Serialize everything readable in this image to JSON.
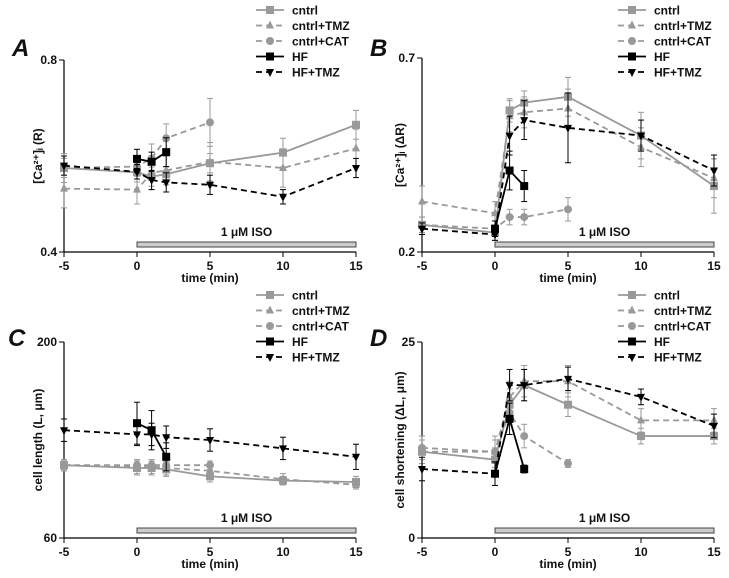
{
  "figure": {
    "iso_label": "1 μM ISO",
    "panels": [
      "A",
      "B",
      "C",
      "D"
    ]
  },
  "chart_data": [
    {
      "panel": "A",
      "type": "line",
      "xlabel": "time (min)",
      "ylabel": "[Ca²⁺]ᵢ (R)",
      "xlim": [
        -5,
        15
      ],
      "ylim": [
        0.4,
        0.8
      ],
      "xticks": [
        -5,
        0,
        5,
        10,
        15
      ],
      "yticks": [
        0.4,
        0.8
      ],
      "iso_label": "1 μM ISO",
      "legend": [
        "cntrl",
        "cntrl+TMZ",
        "cntrl+CAT",
        "HF",
        "HF+TMZ"
      ],
      "series": [
        {
          "name": "cntrl",
          "x": [
            -5,
            0,
            1,
            2,
            5,
            10,
            15
          ],
          "y": [
            0.575,
            0.566,
            0.557,
            0.562,
            0.585,
            0.607,
            0.665
          ],
          "err": [
            0.02,
            0.02,
            0.02,
            0.015,
            0.02,
            0.03,
            0.03
          ]
        },
        {
          "name": "cntrl+TMZ",
          "x": [
            -5,
            0,
            1,
            2,
            5,
            10,
            15
          ],
          "y": [
            0.532,
            0.53,
            0.565,
            0.57,
            0.588,
            0.575,
            0.616
          ],
          "err": [
            0.04,
            0.03,
            0.035,
            0.03,
            0.04,
            0.04,
            0.04
          ]
        },
        {
          "name": "cntrl+CAT",
          "x": [
            -5,
            0,
            1,
            2,
            5
          ],
          "y": [
            0.575,
            0.578,
            0.595,
            0.637,
            0.67
          ],
          "err": [
            0.03,
            0.02,
            0.03,
            0.03,
            0.05
          ]
        },
        {
          "name": "HF",
          "x": [
            0,
            1,
            2
          ],
          "y": [
            0.594,
            0.588,
            0.608
          ],
          "err": [
            0.02,
            0.02,
            0.03
          ]
        },
        {
          "name": "HF+TMZ",
          "x": [
            -5,
            0,
            1,
            2,
            5,
            10,
            15
          ],
          "y": [
            0.58,
            0.567,
            0.55,
            0.545,
            0.54,
            0.515,
            0.575
          ],
          "err": [
            0.02,
            0.015,
            0.02,
            0.02,
            0.02,
            0.015,
            0.02
          ]
        }
      ]
    },
    {
      "panel": "B",
      "type": "line",
      "xlabel": "time (min)",
      "ylabel": "[Ca²⁺]ᵢ (ΔR)",
      "xlim": [
        -5,
        15
      ],
      "ylim": [
        0.2,
        0.7
      ],
      "xticks": [
        -5,
        0,
        5,
        10,
        15
      ],
      "yticks": [
        0.2,
        0.7
      ],
      "iso_label": "1 μM ISO",
      "legend": [
        "cntrl",
        "cntrl+TMZ",
        "cntrl+CAT",
        "HF",
        "HF+TMZ"
      ],
      "series": [
        {
          "name": "cntrl",
          "x": [
            -5,
            0,
            1,
            2,
            5,
            10,
            15
          ],
          "y": [
            0.27,
            0.25,
            0.565,
            0.585,
            0.6,
            0.5,
            0.37
          ],
          "err": [
            0.02,
            0.02,
            0.03,
            0.03,
            0.05,
            0.06,
            0.07
          ]
        },
        {
          "name": "cntrl+TMZ",
          "x": [
            -5,
            0,
            1,
            2,
            5,
            10,
            15
          ],
          "y": [
            0.33,
            0.3,
            0.55,
            0.56,
            0.57,
            0.47,
            0.39
          ],
          "err": [
            0.04,
            0.03,
            0.04,
            0.04,
            0.05,
            0.05,
            0.05
          ]
        },
        {
          "name": "cntrl+CAT",
          "x": [
            -5,
            0,
            1,
            2,
            5
          ],
          "y": [
            0.27,
            0.26,
            0.29,
            0.29,
            0.31
          ],
          "err": [
            0.02,
            0.02,
            0.02,
            0.02,
            0.03
          ]
        },
        {
          "name": "HF",
          "x": [
            0,
            1,
            2
          ],
          "y": [
            0.26,
            0.41,
            0.37
          ],
          "err": [
            0.02,
            0.05,
            0.04
          ]
        },
        {
          "name": "HF+TMZ",
          "x": [
            -5,
            0,
            1,
            2,
            5,
            10,
            15
          ],
          "y": [
            0.26,
            0.245,
            0.5,
            0.54,
            0.52,
            0.5,
            0.41
          ],
          "err": [
            0.015,
            0.015,
            0.05,
            0.05,
            0.09,
            0.04,
            0.04
          ]
        }
      ]
    },
    {
      "panel": "C",
      "type": "line",
      "xlabel": "time (min)",
      "ylabel": "cell length (L, μm)",
      "xlim": [
        -5,
        15
      ],
      "ylim": [
        60,
        200
      ],
      "xticks": [
        -5,
        0,
        5,
        10,
        15
      ],
      "yticks": [
        60,
        200
      ],
      "iso_label": "1 μM ISO",
      "legend": [
        "cntrl",
        "cntrl+TMZ",
        "cntrl+CAT",
        "HF",
        "HF+TMZ"
      ],
      "series": [
        {
          "name": "cntrl",
          "x": [
            -5,
            0,
            1,
            2,
            5,
            10,
            15
          ],
          "y": [
            112,
            110,
            110,
            109,
            104,
            101,
            100
          ],
          "err": [
            4,
            5,
            5,
            5,
            4,
            3,
            4
          ]
        },
        {
          "name": "cntrl+TMZ",
          "x": [
            -5,
            0,
            1,
            2,
            5,
            10,
            15
          ],
          "y": [
            112,
            111,
            111,
            110,
            108,
            102,
            98
          ],
          "err": [
            4,
            5,
            5,
            5,
            5,
            4,
            3
          ]
        },
        {
          "name": "cntrl+CAT",
          "x": [
            -5,
            0,
            1,
            2,
            5
          ],
          "y": [
            112,
            112,
            112,
            112,
            112
          ],
          "err": [
            3,
            3,
            3,
            3,
            3
          ]
        },
        {
          "name": "HF",
          "x": [
            0,
            1,
            2
          ],
          "y": [
            142,
            137,
            118
          ],
          "err": [
            15,
            14,
            10
          ]
        },
        {
          "name": "HF+TMZ",
          "x": [
            -5,
            0,
            1,
            2,
            5,
            10,
            15
          ],
          "y": [
            137,
            134,
            134,
            132,
            130,
            124,
            118
          ],
          "err": [
            8,
            8,
            8,
            8,
            8,
            8,
            9
          ]
        }
      ]
    },
    {
      "panel": "D",
      "type": "line",
      "xlabel": "time (min)",
      "ylabel": "cell shortening (ΔL, μm)",
      "xlim": [
        -5,
        15
      ],
      "ylim": [
        0,
        25
      ],
      "xticks": [
        -5,
        0,
        5,
        10,
        15
      ],
      "yticks": [
        0,
        25
      ],
      "iso_label": "1 μM ISO",
      "legend": [
        "cntrl",
        "cntrl+TMZ",
        "cntrl+CAT",
        "HF",
        "HF+TMZ"
      ],
      "series": [
        {
          "name": "cntrl",
          "x": [
            -5,
            0,
            1,
            2,
            5,
            10,
            15
          ],
          "y": [
            11,
            10,
            17,
            19.5,
            17,
            13,
            13
          ],
          "err": [
            1.5,
            1.5,
            2,
            2,
            1.5,
            1,
            1
          ]
        },
        {
          "name": "cntrl+TMZ",
          "x": [
            -5,
            0,
            1,
            2,
            5,
            10,
            15
          ],
          "y": [
            11,
            11,
            18,
            20,
            20,
            15,
            15
          ],
          "err": [
            2,
            2,
            2,
            2,
            2,
            1.5,
            1.5
          ]
        },
        {
          "name": "cntrl+CAT",
          "x": [
            -5,
            0,
            1,
            2,
            5
          ],
          "y": [
            11.5,
            11,
            16,
            13,
            9.5
          ],
          "err": [
            1.5,
            1.5,
            1.5,
            1.5,
            0.5
          ]
        },
        {
          "name": "HF",
          "x": [
            0,
            1,
            2
          ],
          "y": [
            8.2,
            15.2,
            8.8
          ],
          "err": [
            1.5,
            2,
            0.5
          ]
        },
        {
          "name": "HF+TMZ",
          "x": [
            -5,
            0,
            1,
            2,
            5,
            10,
            15
          ],
          "y": [
            8.8,
            8.2,
            19.5,
            19.5,
            20.3,
            18,
            14.3
          ],
          "err": [
            1.5,
            1.5,
            2,
            2,
            1.5,
            1,
            1.5
          ]
        }
      ]
    }
  ],
  "styles": {
    "cntrl": {
      "color": "#999999",
      "dash": "solid",
      "marker": "square"
    },
    "cntrl+TMZ": {
      "color": "#999999",
      "dash": "dashed",
      "marker": "triangle-up"
    },
    "cntrl+CAT": {
      "color": "#999999",
      "dash": "dashed",
      "marker": "circle"
    },
    "HF": {
      "color": "#000000",
      "dash": "solid",
      "marker": "square"
    },
    "HF+TMZ": {
      "color": "#000000",
      "dash": "dashed",
      "marker": "triangle-down"
    }
  }
}
